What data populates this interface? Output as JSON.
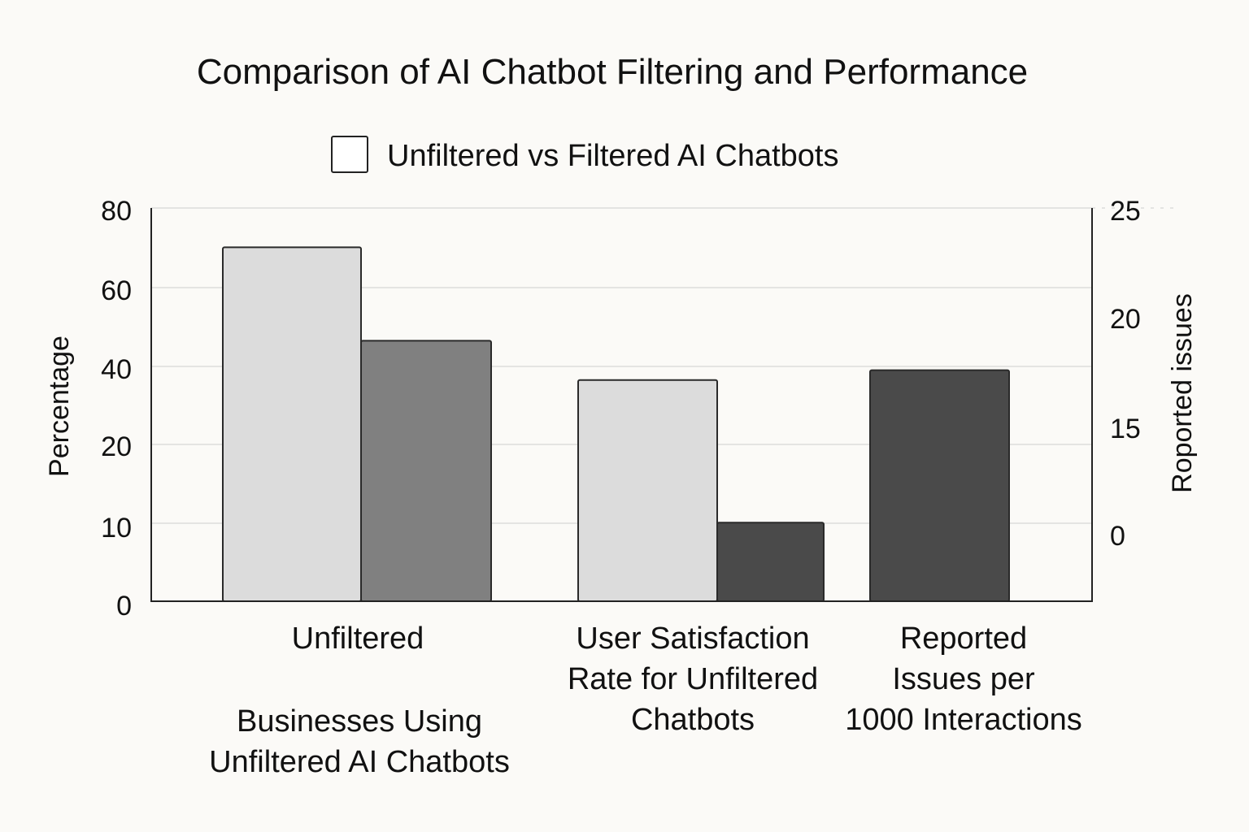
{
  "chart_data": {
    "type": "bar",
    "title": "Comparison of AI Chatbot Filtering and Performance",
    "legend": {
      "label": "Unfiltered vs Filtered AI Chatbots",
      "swatch_color": "#ffffff",
      "placement": "top-center"
    },
    "ylabel_left": "Percentage",
    "ylabel_right": "Roported issues",
    "left_ticks": [
      "80",
      "60",
      "40",
      "20",
      "10",
      "0"
    ],
    "right_ticks": [
      "25",
      "20",
      "15",
      "0"
    ],
    "ylim": [
      0,
      80
    ],
    "grid": true,
    "categories": [
      {
        "top_label": "Unfiltered",
        "bottom_label": [
          "Businesses Using",
          "Unfiltered AI Chatbots"
        ],
        "bars": [
          {
            "value": 72,
            "color": "#dcdcdc"
          },
          {
            "value": 53,
            "color": "#808080"
          }
        ]
      },
      {
        "top_label": "",
        "bottom_label": [
          "User Satisfaction",
          "Rate for Unfiltered",
          "Chatbots"
        ],
        "bars": [
          {
            "value": 45,
            "color": "#dcdcdc"
          },
          {
            "value": 16,
            "color": "#4a4a4a"
          }
        ]
      },
      {
        "top_label": "",
        "bottom_label": [
          "Reported",
          "Issues per",
          "1000 Interactions"
        ],
        "bars": [
          {
            "value": 47,
            "color": "#4a4a4a"
          }
        ]
      }
    ]
  }
}
